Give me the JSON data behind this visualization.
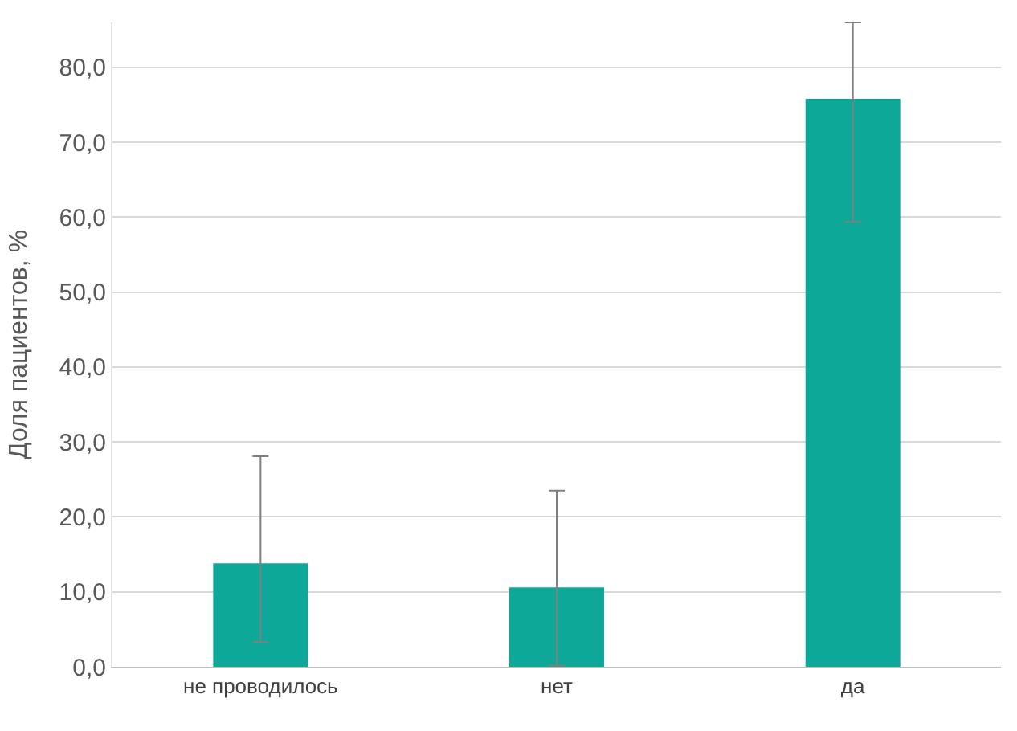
{
  "chart_data": {
    "type": "bar",
    "ylabel": "Доля пациентов, %",
    "categories": [
      "не проводилось",
      "нет",
      "да"
    ],
    "values": [
      13.8,
      10.6,
      75.8
    ],
    "errors": [
      [
        3.3,
        28.1
      ],
      [
        0.2,
        23.5
      ],
      [
        59.4,
        86
      ]
    ],
    "color": "#0ea899",
    "ylim": [
      0,
      86
    ],
    "yticks": [
      {
        "value": 0,
        "label": "0,0"
      },
      {
        "value": 10,
        "label": "10,0"
      },
      {
        "value": 20,
        "label": "20,0"
      },
      {
        "value": 30,
        "label": "30,0"
      },
      {
        "value": 40,
        "label": "40,0"
      },
      {
        "value": 50,
        "label": "50,0"
      },
      {
        "value": 60,
        "label": "60,0"
      },
      {
        "value": 70,
        "label": "70,0"
      },
      {
        "value": 80,
        "label": "80,0"
      }
    ],
    "grid": "y"
  }
}
